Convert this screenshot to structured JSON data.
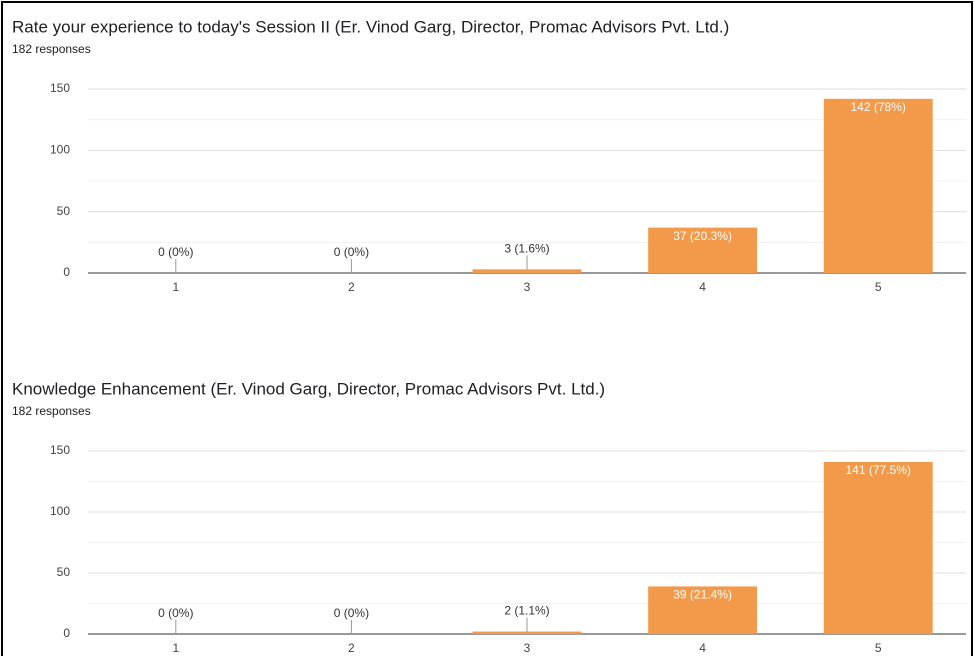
{
  "chart_data": [
    {
      "type": "bar",
      "title": "Rate your experience to today's Session II (Er. Vinod Garg, Director, Promac Advisors Pvt. Ltd.)",
      "subtitle": "182 responses",
      "categories": [
        "1",
        "2",
        "3",
        "4",
        "5"
      ],
      "values": [
        0,
        0,
        3,
        37,
        142
      ],
      "value_labels": [
        "0 (0%)",
        "0 (0%)",
        "3 (1.6%)",
        "37 (20.3%)",
        "142 (78%)"
      ],
      "color": "#f2994a",
      "ylim": [
        0,
        150
      ],
      "yticks": [
        0,
        50,
        100,
        150
      ],
      "minor_yticks": [
        25,
        75,
        125
      ],
      "grid": true
    },
    {
      "type": "bar",
      "title": "Knowledge Enhancement (Er. Vinod Garg, Director, Promac Advisors Pvt. Ltd.)",
      "subtitle": "182 responses",
      "categories": [
        "1",
        "2",
        "3",
        "4",
        "5"
      ],
      "values": [
        0,
        0,
        2,
        39,
        141
      ],
      "value_labels": [
        "0 (0%)",
        "0 (0%)",
        "2 (1.1%)",
        "39 (21.4%)",
        "141 (77.5%)"
      ],
      "color": "#f2994a",
      "ylim": [
        0,
        150
      ],
      "yticks": [
        0,
        50,
        100,
        150
      ],
      "minor_yticks": [
        25,
        75,
        125
      ],
      "grid": true
    }
  ]
}
